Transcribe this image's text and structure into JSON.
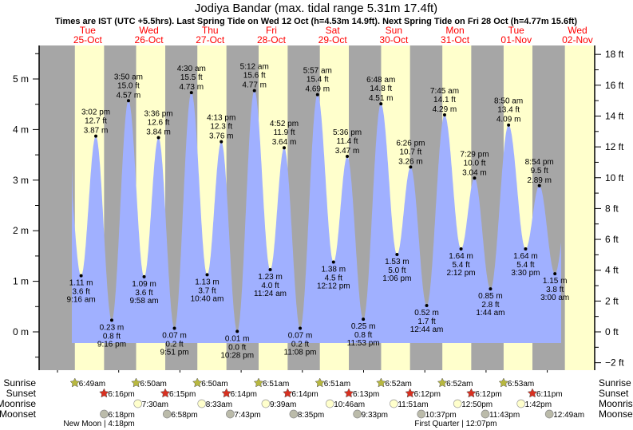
{
  "chart_data": {
    "type": "area",
    "title": "Jodiya Bandar (max. tidal range 5.31m 17.4ft)",
    "subtitle": "Times are IST (UTC +5.5hrs). Last Spring Tide on Wed 12 Oct (h=4.53m 14.9ft). Next Spring Tide on Fri 28 Oct (h=4.77m 15.6ft)",
    "y_left_unit": "m",
    "y_right_unit": "ft",
    "ylim_m": [
      -0.6,
      5.6
    ],
    "y_left_ticks": [
      "0 m",
      "1 m",
      "2 m",
      "3 m",
      "4 m",
      "5 m"
    ],
    "y_right_ticks": [
      "-2 ft",
      "0 ft",
      "2 ft",
      "4 ft",
      "6 ft",
      "8 ft",
      "10 ft",
      "12 ft",
      "14 ft",
      "16 ft",
      "18 ft"
    ],
    "days": [
      {
        "dow": "Tue",
        "date": "25-Oct"
      },
      {
        "dow": "Wed",
        "date": "26-Oct"
      },
      {
        "dow": "Thu",
        "date": "27-Oct"
      },
      {
        "dow": "Fri",
        "date": "28-Oct"
      },
      {
        "dow": "Sat",
        "date": "29-Oct"
      },
      {
        "dow": "Sun",
        "date": "30-Oct"
      },
      {
        "dow": "Mon",
        "date": "31-Oct"
      },
      {
        "dow": "Tue",
        "date": "01-Nov"
      },
      {
        "dow": "Wed",
        "date": "02-Nov"
      }
    ],
    "start_level_m": 3.3,
    "end_level_m": 1.8,
    "extrema": [
      {
        "type": "low",
        "day": 0,
        "hour": 9.267,
        "m": 1.11,
        "m_label": "1.11 m",
        "ft_label": "3.6 ft",
        "time": "9:16 am"
      },
      {
        "type": "high",
        "day": 0,
        "hour": 15.033,
        "m": 3.87,
        "m_label": "3.87 m",
        "ft_label": "12.7 ft",
        "time": "3:02 pm"
      },
      {
        "type": "low",
        "day": 0,
        "hour": 21.267,
        "m": 0.23,
        "m_label": "0.23 m",
        "ft_label": "0.8 ft",
        "time": "9:16 pm"
      },
      {
        "type": "high",
        "day": 1,
        "hour": 3.833,
        "m": 4.57,
        "m_label": "4.57 m",
        "ft_label": "15.0 ft",
        "time": "3:50 am"
      },
      {
        "type": "low",
        "day": 1,
        "hour": 9.967,
        "m": 1.09,
        "m_label": "1.09 m",
        "ft_label": "3.6 ft",
        "time": "9:58 am"
      },
      {
        "type": "high",
        "day": 1,
        "hour": 15.6,
        "m": 3.84,
        "m_label": "3.84 m",
        "ft_label": "12.6 ft",
        "time": "3:36 pm"
      },
      {
        "type": "low",
        "day": 1,
        "hour": 21.85,
        "m": 0.07,
        "m_label": "0.07 m",
        "ft_label": "0.2 ft",
        "time": "9:51 pm"
      },
      {
        "type": "high",
        "day": 2,
        "hour": 4.5,
        "m": 4.73,
        "m_label": "4.73 m",
        "ft_label": "15.5 ft",
        "time": "4:30 am"
      },
      {
        "type": "low",
        "day": 2,
        "hour": 10.667,
        "m": 1.13,
        "m_label": "1.13 m",
        "ft_label": "3.7 ft",
        "time": "10:40 am"
      },
      {
        "type": "high",
        "day": 2,
        "hour": 16.217,
        "m": 3.76,
        "m_label": "3.76 m",
        "ft_label": "12.3 ft",
        "time": "4:13 pm"
      },
      {
        "type": "low",
        "day": 2,
        "hour": 22.467,
        "m": 0.01,
        "m_label": "0.01 m",
        "ft_label": "0.0 ft",
        "time": "10:28 pm"
      },
      {
        "type": "high",
        "day": 3,
        "hour": 5.2,
        "m": 4.77,
        "m_label": "4.77 m",
        "ft_label": "15.6 ft",
        "time": "5:12 am"
      },
      {
        "type": "low",
        "day": 3,
        "hour": 11.4,
        "m": 1.23,
        "m_label": "1.23 m",
        "ft_label": "4.0 ft",
        "time": "11:24 am"
      },
      {
        "type": "high",
        "day": 3,
        "hour": 16.867,
        "m": 3.64,
        "m_label": "3.64 m",
        "ft_label": "11.9 ft",
        "time": "4:52 pm"
      },
      {
        "type": "low",
        "day": 3,
        "hour": 23.133,
        "m": 0.07,
        "m_label": "0.07 m",
        "ft_label": "0.2 ft",
        "time": "11:08 pm"
      },
      {
        "type": "high",
        "day": 4,
        "hour": 5.95,
        "m": 4.69,
        "m_label": "4.69 m",
        "ft_label": "15.4 ft",
        "time": "5:57 am"
      },
      {
        "type": "low",
        "day": 4,
        "hour": 12.2,
        "m": 1.38,
        "m_label": "1.38 m",
        "ft_label": "4.5 ft",
        "time": "12:12 pm"
      },
      {
        "type": "high",
        "day": 4,
        "hour": 17.6,
        "m": 3.47,
        "m_label": "3.47 m",
        "ft_label": "11.4 ft",
        "time": "5:36 pm"
      },
      {
        "type": "low",
        "day": 4,
        "hour": 23.883,
        "m": 0.25,
        "m_label": "0.25 m",
        "ft_label": "0.8 ft",
        "time": "11:53 pm"
      },
      {
        "type": "high",
        "day": 5,
        "hour": 6.8,
        "m": 4.51,
        "m_label": "4.51 m",
        "ft_label": "14.8 ft",
        "time": "6:48 am"
      },
      {
        "type": "low",
        "day": 5,
        "hour": 13.1,
        "m": 1.53,
        "m_label": "1.53 m",
        "ft_label": "5.0 ft",
        "time": "1:06 pm"
      },
      {
        "type": "high",
        "day": 5,
        "hour": 18.433,
        "m": 3.26,
        "m_label": "3.26 m",
        "ft_label": "10.7 ft",
        "time": "6:26 pm"
      },
      {
        "type": "low",
        "day": 6,
        "hour": 0.733,
        "m": 0.52,
        "m_label": "0.52 m",
        "ft_label": "1.7 ft",
        "time": "12:44 am"
      },
      {
        "type": "high",
        "day": 6,
        "hour": 7.75,
        "m": 4.29,
        "m_label": "4.29 m",
        "ft_label": "14.1 ft",
        "time": "7:45 am"
      },
      {
        "type": "low",
        "day": 6,
        "hour": 14.2,
        "m": 1.64,
        "m_label": "1.64 m",
        "ft_label": "5.4 ft",
        "time": "2:12 pm"
      },
      {
        "type": "high",
        "day": 6,
        "hour": 19.483,
        "m": 3.04,
        "m_label": "3.04 m",
        "ft_label": "10.0 ft",
        "time": "7:29 pm"
      },
      {
        "type": "low",
        "day": 7,
        "hour": 1.733,
        "m": 0.85,
        "m_label": "0.85 m",
        "ft_label": "2.8 ft",
        "time": "1:44 am"
      },
      {
        "type": "high",
        "day": 7,
        "hour": 8.833,
        "m": 4.09,
        "m_label": "4.09 m",
        "ft_label": "13.4 ft",
        "time": "8:50 am"
      },
      {
        "type": "low",
        "day": 7,
        "hour": 15.5,
        "m": 1.64,
        "m_label": "1.64 m",
        "ft_label": "5.4 ft",
        "time": "3:30 pm"
      },
      {
        "type": "high",
        "day": 7,
        "hour": 20.9,
        "m": 2.89,
        "m_label": "2.89 m",
        "ft_label": "9.5 ft",
        "time": "8:54 pm"
      },
      {
        "type": "low",
        "day": 8,
        "hour": 3.0,
        "m": 1.15,
        "m_label": "1.15 m",
        "ft_label": "3.8 ft",
        "time": "3:00 am"
      }
    ],
    "night_periods_hours": [
      {
        "from_day": -1,
        "sunset_hour": 18.28,
        "to_day": 0,
        "sunrise_hour": 6.817
      }
    ],
    "rows": {
      "labels": {
        "sunrise": "Sunrise",
        "sunset": "Sunset",
        "moonrise": "Moonrise",
        "moonset": "Moonset"
      },
      "sunrise": [
        {
          "day": 0,
          "hour": 6.817,
          "label": "6:49am"
        },
        {
          "day": 1,
          "hour": 6.833,
          "label": "6:50am"
        },
        {
          "day": 2,
          "hour": 6.833,
          "label": "6:50am"
        },
        {
          "day": 3,
          "hour": 6.85,
          "label": "6:51am"
        },
        {
          "day": 4,
          "hour": 6.85,
          "label": "6:51am"
        },
        {
          "day": 5,
          "hour": 6.867,
          "label": "6:52am"
        },
        {
          "day": 6,
          "hour": 6.867,
          "label": "6:52am"
        },
        {
          "day": 7,
          "hour": 6.883,
          "label": "6:53am"
        }
      ],
      "sunset": [
        {
          "day": 0,
          "hour": 18.267,
          "label": "6:16pm"
        },
        {
          "day": 1,
          "hour": 18.25,
          "label": "6:15pm"
        },
        {
          "day": 2,
          "hour": 18.233,
          "label": "6:14pm"
        },
        {
          "day": 3,
          "hour": 18.233,
          "label": "6:14pm"
        },
        {
          "day": 4,
          "hour": 18.217,
          "label": "6:13pm"
        },
        {
          "day": 5,
          "hour": 18.2,
          "label": "6:12pm"
        },
        {
          "day": 6,
          "hour": 18.2,
          "label": "6:12pm"
        },
        {
          "day": 7,
          "hour": 18.183,
          "label": "6:11pm"
        }
      ],
      "moonrise": [
        {
          "day": 1,
          "hour": 7.5,
          "label": "7:30am"
        },
        {
          "day": 2,
          "hour": 8.55,
          "label": "8:33am"
        },
        {
          "day": 3,
          "hour": 9.65,
          "label": "9:39am"
        },
        {
          "day": 4,
          "hour": 10.767,
          "label": "10:46am"
        },
        {
          "day": 5,
          "hour": 11.85,
          "label": "11:51am"
        },
        {
          "day": 6,
          "hour": 12.833,
          "label": "12:50pm"
        },
        {
          "day": 7,
          "hour": 13.7,
          "label": "1:42pm"
        }
      ],
      "moonset": [
        {
          "day": 0,
          "hour": 18.3,
          "label": "6:18pm"
        },
        {
          "day": 1,
          "hour": 18.967,
          "label": "6:58pm"
        },
        {
          "day": 2,
          "hour": 19.717,
          "label": "7:43pm"
        },
        {
          "day": 3,
          "hour": 20.583,
          "label": "8:35pm"
        },
        {
          "day": 4,
          "hour": 21.55,
          "label": "9:33pm"
        },
        {
          "day": 5,
          "hour": 22.617,
          "label": "10:37pm"
        },
        {
          "day": 6,
          "hour": 23.717,
          "label": "11:43pm"
        },
        {
          "day": 8,
          "hour": 0.817,
          "label": "12:49am"
        }
      ],
      "moon_phases": [
        {
          "day": 0,
          "hour": 16.3,
          "label": "New Moon | 4:18pm"
        },
        {
          "day": 6,
          "hour": 12.117,
          "label": "First Quarter | 12:07pm"
        }
      ]
    }
  },
  "colors": {
    "night": "#a6a6a6",
    "day": "#ffffcc",
    "water": "#a0b0ff",
    "day_label": "#ff0000",
    "sunrise_star": "#b8b840",
    "sunset_star": "#d83020",
    "moonrise": "#ffffcc",
    "moonset": "#bbbbaa"
  }
}
